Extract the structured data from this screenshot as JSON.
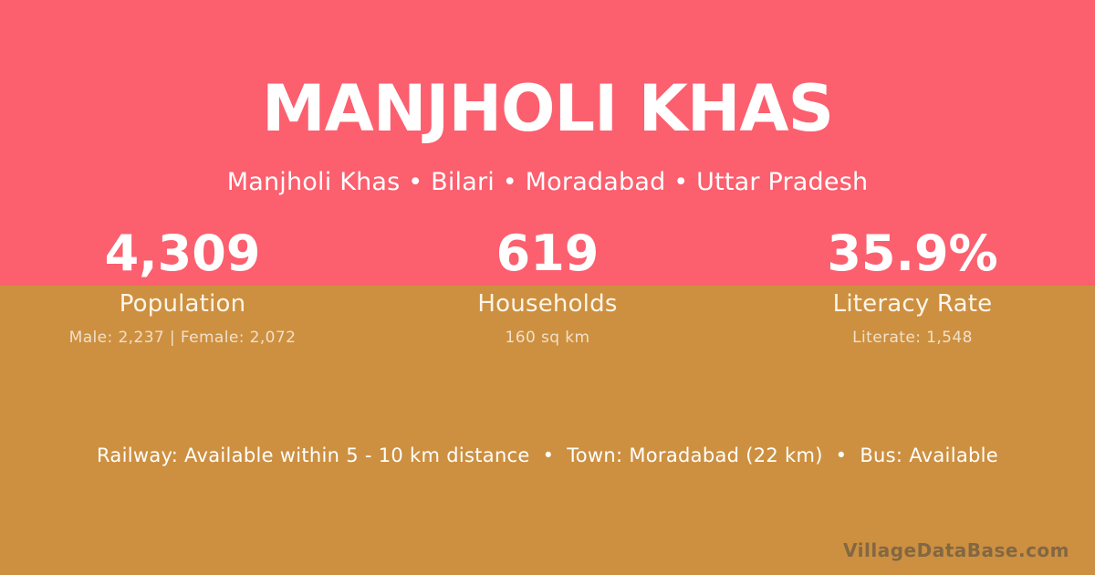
{
  "theme": {
    "top_background": "#fc5f6e",
    "bottom_background": "#cd9040",
    "text_color": "#ffffff",
    "muted_text_color": "rgba(255,255,255,0.72)",
    "watermark_color": "rgba(70,70,70,0.55)"
  },
  "header": {
    "title": "MANJHOLI KHAS",
    "breadcrumb": "Manjholi Khas • Bilari • Moradabad • Uttar Pradesh"
  },
  "stats": [
    {
      "value": "4,309",
      "label": "Population",
      "detail": "Male: 2,237 | Female: 2,072"
    },
    {
      "value": "619",
      "label": "Households",
      "detail": "160 sq km"
    },
    {
      "value": "35.9%",
      "label": "Literacy Rate",
      "detail": "Literate: 1,548"
    }
  ],
  "footer": {
    "info": "Railway: Available within 5 - 10 km distance  •  Town: Moradabad (22 km)  •  Bus: Available",
    "watermark": "VillageDataBase.com"
  }
}
